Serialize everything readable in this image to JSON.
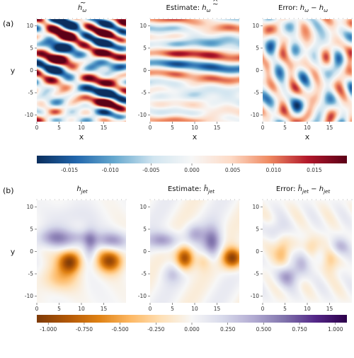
{
  "panel_labels": [
    "(a)",
    "(b)"
  ],
  "chart_data": [
    {
      "type": "heatmap",
      "row": "(a)",
      "colormap": "diverging-red-blue",
      "colorbar": {
        "range": [
          -0.019,
          0.019
        ],
        "ticks": [
          -0.015,
          -0.01,
          -0.005,
          0.0,
          0.005,
          0.01,
          0.015
        ],
        "tick_labels": [
          "-0.015",
          "-0.010",
          "-0.005",
          "0.000",
          "0.005",
          "0.010",
          "0.015"
        ],
        "colors": [
          "#0b2f5e",
          "#2166ac",
          "#67a9cf",
          "#d1e5f0",
          "#f7f7f7",
          "#fddbc7",
          "#ef8a62",
          "#b2182b",
          "#5c0017"
        ]
      },
      "panels": [
        {
          "title": "h̃_ω",
          "field": "wave_true"
        },
        {
          "title": "Estimate: h̃_ω (hat)",
          "field": "wave_est"
        },
        {
          "title": "Error: ĥ̃_ω − h̃_ω",
          "field": "wave_err"
        }
      ],
      "xlabel": "x",
      "ylabel": "y",
      "xlim": [
        0,
        20
      ],
      "ylim": [
        -11.5,
        11.5
      ],
      "xticks": [
        0,
        5,
        10,
        15
      ],
      "yticks": [
        10,
        5,
        0,
        -5,
        -10
      ],
      "xtick_labels": [
        "0",
        "5",
        "10",
        "15"
      ],
      "ytick_labels": [
        "10",
        "5",
        "0",
        "-5",
        "-10"
      ]
    },
    {
      "type": "heatmap",
      "row": "(b)",
      "colormap": "diverging-orange-purple",
      "colorbar": {
        "range": [
          -1.08,
          1.08
        ],
        "ticks": [
          -1.0,
          -0.75,
          -0.5,
          -0.25,
          0.0,
          0.25,
          0.5,
          0.75,
          1.0
        ],
        "tick_labels": [
          "-1.000",
          "-0.750",
          "-0.500",
          "-0.250",
          "0.000",
          "0.250",
          "0.500",
          "0.750",
          "1.000"
        ],
        "colors": [
          "#7f3b08",
          "#b35806",
          "#e08214",
          "#fdb863",
          "#fee0b6",
          "#f7f7f7",
          "#d8daeb",
          "#b2abd2",
          "#8073ac",
          "#542788",
          "#2d004b"
        ]
      },
      "panels": [
        {
          "title": "h_jet",
          "field": "jet_true"
        },
        {
          "title": "Estimate: ĥ_jet",
          "field": "jet_est"
        },
        {
          "title": "Error: ĥ_jet − h_jet",
          "field": "jet_err"
        }
      ],
      "xlabel": "x",
      "ylabel": "y",
      "xlim": [
        0,
        20
      ],
      "ylim": [
        -11.5,
        11.5
      ],
      "xticks": [
        0,
        5,
        10,
        15
      ],
      "yticks": [
        10,
        5,
        0,
        -5,
        -10
      ],
      "xtick_labels": [
        "0",
        "5",
        "10",
        "15"
      ],
      "ytick_labels": [
        "10",
        "5",
        "0",
        "-5",
        "-10"
      ]
    }
  ]
}
